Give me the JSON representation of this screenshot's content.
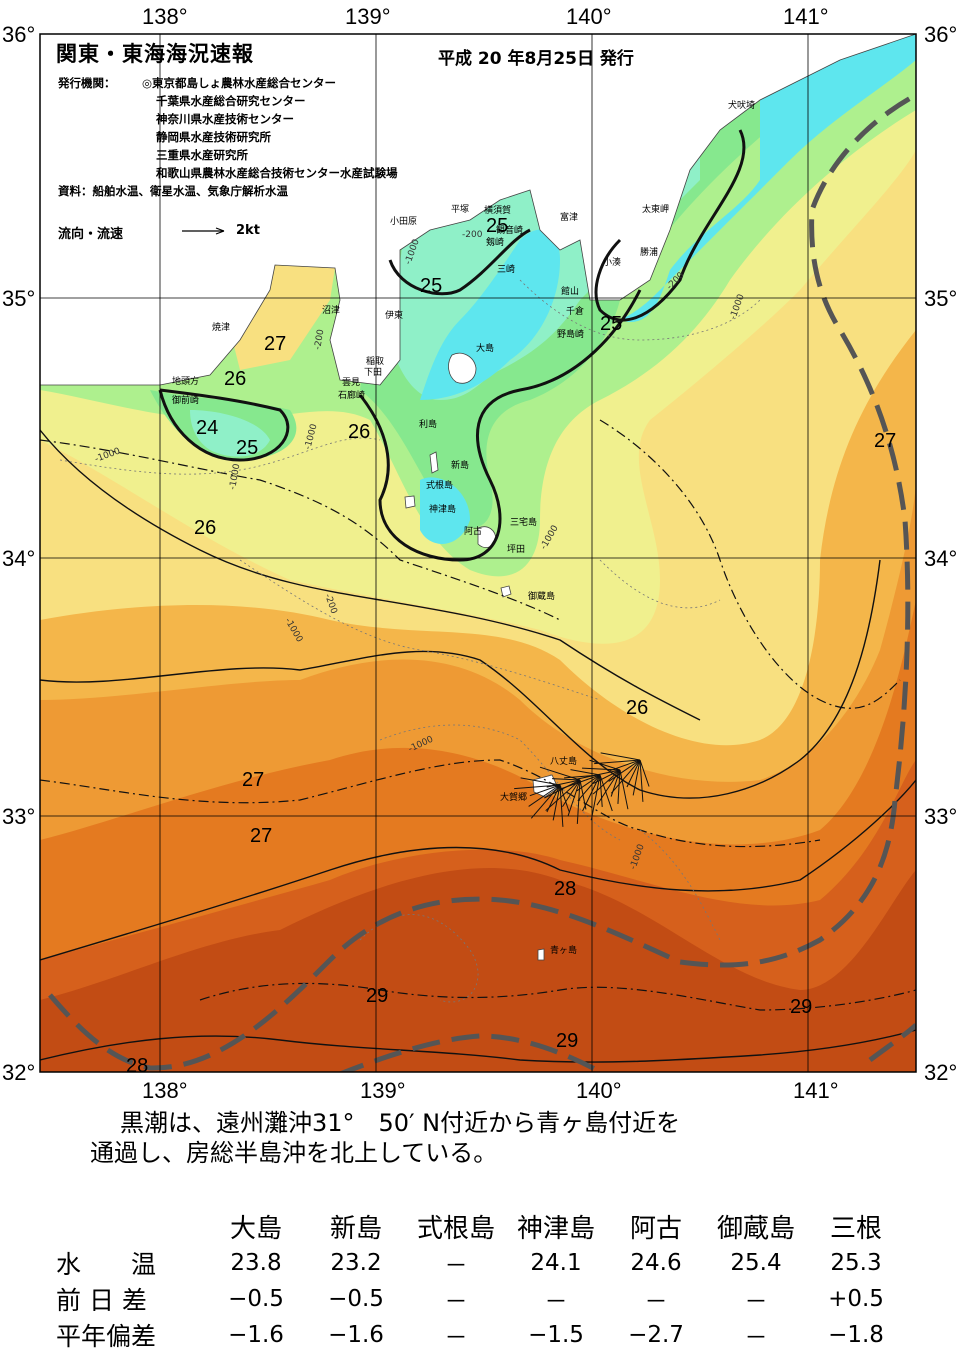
{
  "header": {
    "title": "関東・東海海況速報",
    "issue_date": "平成 20 年8月25日 発行",
    "agencies_label": "発行機関：",
    "agencies": [
      "◎東京都島しょ農林水産総合センター",
      "千葉県水産総合研究センター",
      "神奈川県水産技術センター",
      "静岡県水産技術研究所",
      "三重県水産研究所",
      "和歌山県農林水産総合技術センター水産試験場"
    ],
    "source": "資料：船舶水温、衛星水温、気象庁解析水温",
    "current_legend_label": "流向・流速",
    "current_legend_value": "2kt"
  },
  "axes": {
    "lon_labels": [
      "138°",
      "139°",
      "140°",
      "141°"
    ],
    "lat_labels": [
      "36°",
      "35°",
      "34°",
      "33°",
      "32°"
    ]
  },
  "isotherm_labels": [
    "24",
    "25",
    "25",
    "25",
    "25",
    "26",
    "26",
    "26",
    "26",
    "27",
    "27",
    "27",
    "27",
    "28",
    "28",
    "29",
    "29",
    "29"
  ],
  "depth_labels": [
    "-200",
    "-1000",
    "-1000",
    "-200",
    "-1000",
    "-1000",
    "-200",
    "-1000",
    "-1000",
    "-1000",
    "-200",
    "-1000",
    "-1000"
  ],
  "places": [
    "犬吠埼",
    "太東岬",
    "勝浦",
    "小湊",
    "富津",
    "横須賀",
    "観音崎",
    "剱崎",
    "三崎",
    "平塚",
    "小田原",
    "館山",
    "千倉",
    "野島崎",
    "沼津",
    "伊東",
    "焼津",
    "稲取",
    "下田",
    "雲見",
    "石廊崎",
    "地頭方",
    "御前崎",
    "大島",
    "利島",
    "新島",
    "式根島",
    "神津島",
    "三宅島",
    "阿古",
    "坪田",
    "御蔵島",
    "八丈島",
    "大賀郷",
    "青ヶ島"
  ],
  "summary": [
    "黒潮は、遠州灘沖31°　50′ N付近から青ヶ島付近を",
    "通過し、房総半島沖を北上している。"
  ],
  "observations": {
    "columns": [
      "大島",
      "新島",
      "式根島",
      "神津島",
      "阿古",
      "御蔵島",
      "三根"
    ],
    "rows": [
      {
        "label": "水　　温",
        "values": [
          "23.8",
          "23.2",
          "－",
          "24.1",
          "24.6",
          "25.4",
          "25.3"
        ]
      },
      {
        "label": "前 日 差",
        "values": [
          "−0.5",
          "−0.5",
          "－",
          "－",
          "－",
          "－",
          "+0.5"
        ]
      },
      {
        "label": "平年偏差",
        "values": [
          "−1.6",
          "−1.6",
          "－",
          "−1.5",
          "−2.7",
          "－",
          "−1.8"
        ]
      }
    ]
  },
  "colors": {
    "t23": "#5ee6ee",
    "t24": "#8ff0c8",
    "t25": "#86e88e",
    "t255": "#aef08e",
    "t26": "#f0f08e",
    "t265": "#f8e080",
    "t27": "#f4b64a",
    "t275": "#ee9a34",
    "t28": "#e47a20",
    "t285": "#d6601c",
    "t29": "#c24c14",
    "land": "#ffffff",
    "kuroshio": "#555555"
  }
}
